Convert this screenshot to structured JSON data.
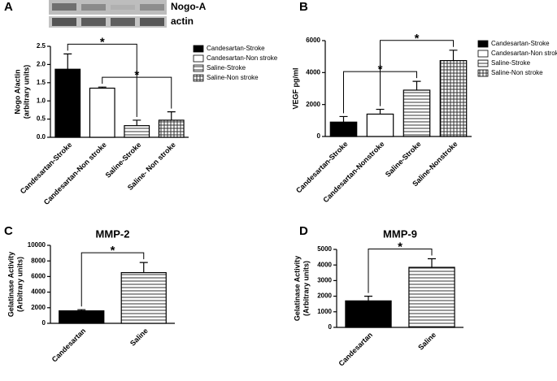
{
  "chart_data": [
    {
      "type": "bar",
      "panel": "A",
      "blot_labels": [
        "Nogo-A",
        "actin"
      ],
      "ylabel": [
        "Nogo A/actin",
        "(arbitrary units)"
      ],
      "categories": [
        "Candesartan-Stroke",
        "Candesartan-Non stroke",
        "Saline-Stroke",
        "Saline- Non stroke"
      ],
      "values": [
        1.87,
        1.35,
        0.32,
        0.47
      ],
      "errors": [
        0.42,
        0.03,
        0.15,
        0.23
      ],
      "fills": [
        "#000000",
        "#ffffff",
        "horizontal-lines",
        "crosshatch"
      ],
      "legend": [
        "Candesartan-Stroke",
        "Candesartan-Non stroke",
        "Saline-Stroke",
        "Saline-Non stroke"
      ],
      "ylim": [
        0,
        2.5
      ],
      "yticks": [
        {
          "value": 0,
          "label": "0.0"
        },
        0.5,
        {
          "value": 1,
          "label": "1.0"
        },
        1.5,
        {
          "value": 2,
          "label": "2.0"
        },
        2.5
      ],
      "annotations": [
        {
          "text": "*",
          "from": 0,
          "to": 2
        },
        {
          "text": "*",
          "from": 1,
          "to": 3
        }
      ]
    },
    {
      "type": "bar",
      "panel": "B",
      "ylabel": [
        "VEGF pg/ml"
      ],
      "categories": [
        "Candesartan-Stroke",
        "Candesartan-Nonstroke",
        "Saline-Stroke",
        "Saline-Nonstroke"
      ],
      "values": [
        900,
        1400,
        2900,
        4750
      ],
      "errors": [
        350,
        300,
        550,
        650
      ],
      "fills": [
        "#000000",
        "#ffffff",
        "horizontal-lines",
        "crosshatch"
      ],
      "legend": [
        "Candesartan-Stroke",
        "Candesartan-Non stroke",
        "Saline-Stroke",
        "Saline-Non stroke"
      ],
      "ylim": [
        0,
        6000
      ],
      "yticks": [
        0,
        2000,
        4000,
        6000
      ],
      "annotations": [
        {
          "text": "*",
          "from": 0,
          "to": 2
        },
        {
          "text": "*",
          "from": 1,
          "to": 3
        }
      ]
    },
    {
      "type": "bar",
      "panel": "C",
      "title": "MMP-2",
      "ylabel": [
        "Gelatinase Activity",
        "(Arbitrary units)"
      ],
      "categories": [
        "Candesartan",
        "Saline"
      ],
      "values": [
        1600,
        6500
      ],
      "errors": [
        150,
        1300
      ],
      "fills": [
        "#000000",
        "horizontal-lines"
      ],
      "ylim": [
        0,
        10000
      ],
      "yticks": [
        0,
        2000,
        4000,
        6000,
        8000,
        10000
      ],
      "annotations": [
        {
          "text": "*",
          "from": 0,
          "to": 1
        }
      ]
    },
    {
      "type": "bar",
      "panel": "D",
      "title": "MMP-9",
      "ylabel": [
        "Gelatinase Activity",
        "(Arbitrary units)"
      ],
      "categories": [
        "Candesartan",
        "Saline"
      ],
      "values": [
        1700,
        3850
      ],
      "errors": [
        300,
        550
      ],
      "fills": [
        "#000000",
        "horizontal-lines"
      ],
      "ylim": [
        0,
        5000
      ],
      "yticks": [
        0,
        1000,
        2000,
        3000,
        4000,
        5000
      ],
      "annotations": [
        {
          "text": "*",
          "from": 0,
          "to": 1
        }
      ]
    }
  ]
}
